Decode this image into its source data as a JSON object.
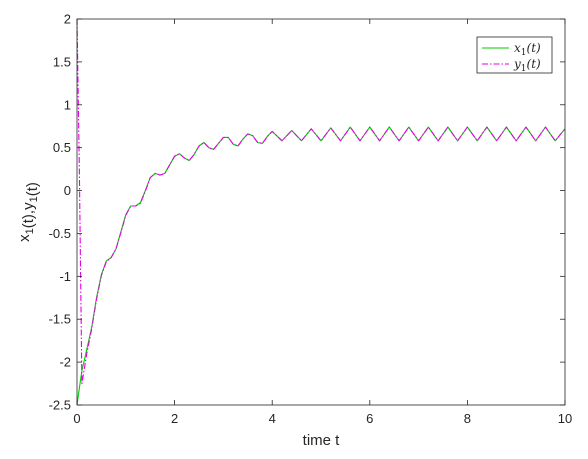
{
  "chart_data": {
    "type": "line",
    "title": "",
    "xlabel": "time t",
    "ylabel": "x_1(t),y_1(t)",
    "xlim": [
      0,
      10
    ],
    "ylim": [
      -2.5,
      2
    ],
    "xticks": [
      0,
      2,
      4,
      6,
      8,
      10
    ],
    "xtick_labels": [
      "0",
      "2",
      "4",
      "6",
      "8",
      "10"
    ],
    "yticks": [
      -2.5,
      -2,
      -1.5,
      -1,
      -0.5,
      0,
      0.5,
      1,
      1.5,
      2
    ],
    "ytick_labels": [
      "-2.5",
      "-2",
      "-1.5",
      "-1",
      "-0.5",
      "0",
      "0.5",
      "1",
      "1.5",
      "2"
    ],
    "grid": false,
    "legend_position": "top-right",
    "x": [
      0,
      0.05,
      0.1,
      0.2,
      0.3,
      0.4,
      0.5,
      0.6,
      0.7,
      0.8,
      0.9,
      1.0,
      1.1,
      1.2,
      1.3,
      1.4,
      1.5,
      1.6,
      1.7,
      1.8,
      1.9,
      2.0,
      2.1,
      2.2,
      2.3,
      2.4,
      2.5,
      2.6,
      2.7,
      2.8,
      2.9,
      3.0,
      3.1,
      3.2,
      3.3,
      3.4,
      3.5,
      3.6,
      3.7,
      3.8,
      3.9,
      4.0,
      4.2,
      4.4,
      4.6,
      4.8,
      5.0,
      5.2,
      5.4,
      5.6,
      5.8,
      6.0,
      6.2,
      6.4,
      6.6,
      6.8,
      7.0,
      7.2,
      7.4,
      7.6,
      7.8,
      8.0,
      8.2,
      8.4,
      8.6,
      8.8,
      9.0,
      9.2,
      9.4,
      9.6,
      9.8,
      10.0
    ],
    "series": [
      {
        "name": "x1(t)",
        "color": "#00cc00",
        "style": "solid",
        "values": [
          -2.5,
          -2.3,
          -2.1,
          -1.85,
          -1.6,
          -1.25,
          -0.98,
          -0.82,
          -0.78,
          -0.68,
          -0.48,
          -0.28,
          -0.18,
          -0.18,
          -0.14,
          0.0,
          0.15,
          0.2,
          0.18,
          0.2,
          0.3,
          0.4,
          0.43,
          0.38,
          0.35,
          0.42,
          0.52,
          0.56,
          0.5,
          0.48,
          0.55,
          0.62,
          0.62,
          0.54,
          0.52,
          0.6,
          0.66,
          0.64,
          0.56,
          0.55,
          0.63,
          0.69,
          0.58,
          0.7,
          0.58,
          0.72,
          0.58,
          0.73,
          0.58,
          0.74,
          0.58,
          0.74,
          0.58,
          0.74,
          0.58,
          0.74,
          0.58,
          0.74,
          0.58,
          0.74,
          0.58,
          0.74,
          0.58,
          0.74,
          0.58,
          0.74,
          0.58,
          0.74,
          0.58,
          0.74,
          0.58,
          0.72
        ]
      },
      {
        "name": "y1(t)",
        "color": "#e600e6",
        "style": "dashdot",
        "values": [
          2.0,
          0.2,
          -2.25,
          -1.9,
          -1.62,
          -1.27,
          -0.99,
          -0.83,
          -0.78,
          -0.68,
          -0.49,
          -0.29,
          -0.18,
          -0.18,
          -0.15,
          -0.01,
          0.15,
          0.2,
          0.18,
          0.2,
          0.3,
          0.4,
          0.43,
          0.38,
          0.35,
          0.42,
          0.52,
          0.56,
          0.5,
          0.48,
          0.55,
          0.62,
          0.62,
          0.54,
          0.52,
          0.6,
          0.66,
          0.64,
          0.56,
          0.55,
          0.63,
          0.69,
          0.58,
          0.7,
          0.58,
          0.72,
          0.58,
          0.73,
          0.58,
          0.74,
          0.58,
          0.74,
          0.58,
          0.74,
          0.58,
          0.74,
          0.58,
          0.74,
          0.58,
          0.74,
          0.58,
          0.74,
          0.58,
          0.74,
          0.58,
          0.74,
          0.58,
          0.74,
          0.58,
          0.74,
          0.58,
          0.72
        ]
      }
    ]
  }
}
